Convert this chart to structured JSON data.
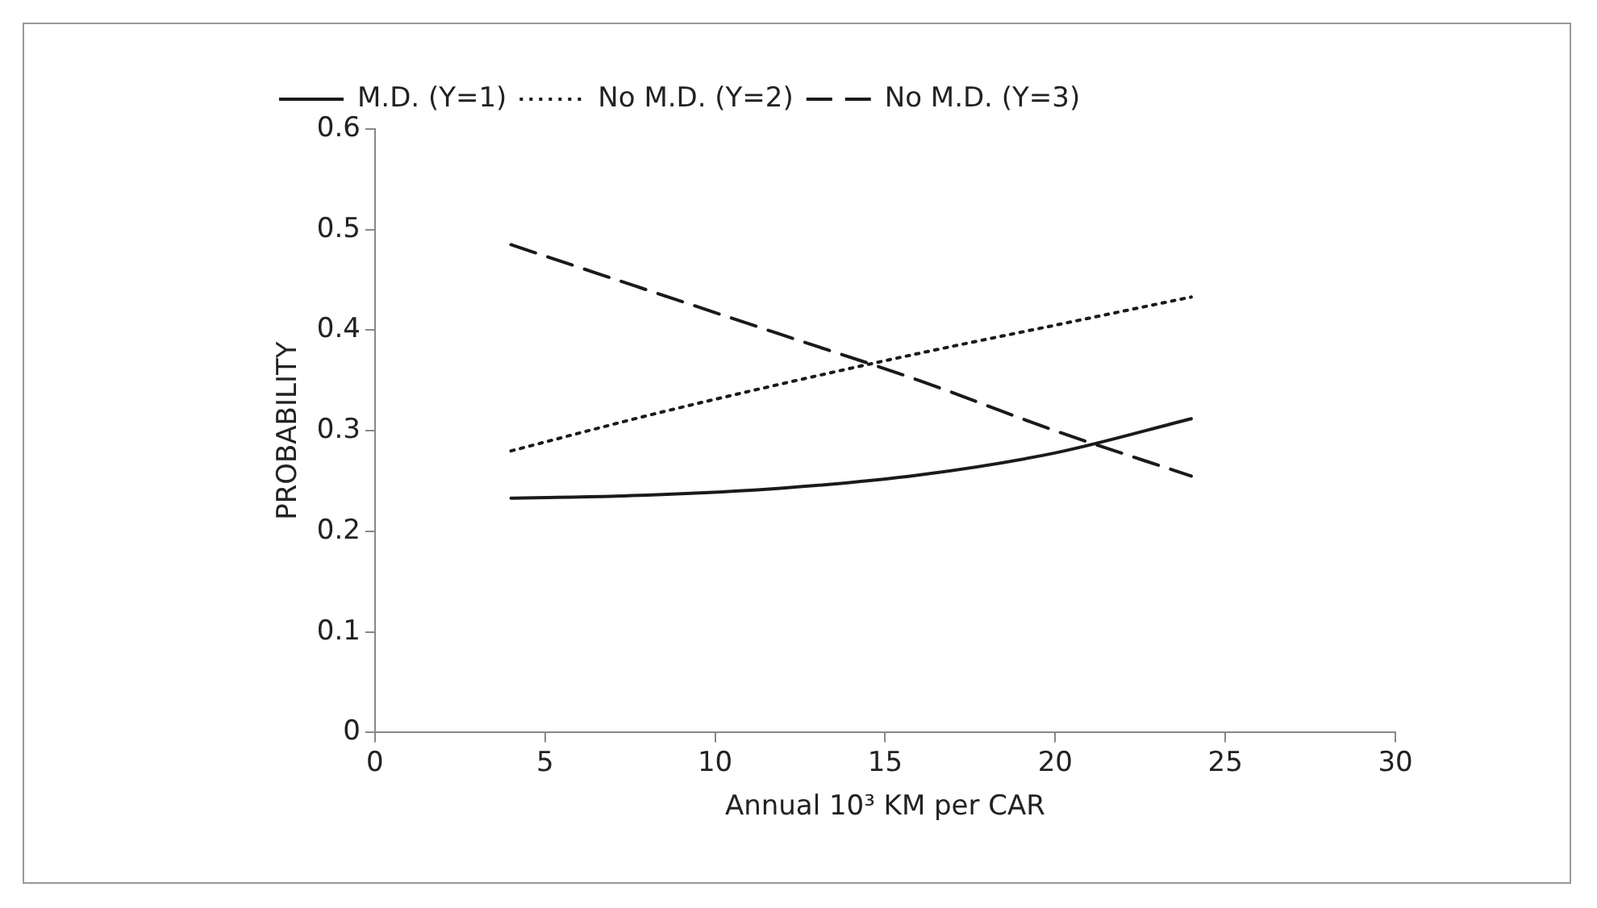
{
  "chart_data": {
    "type": "line",
    "xlabel": "Annual 10³ KM per CAR",
    "ylabel": "PROBABILITY",
    "x": [
      4,
      8,
      12,
      16,
      20,
      24
    ],
    "series": [
      {
        "name": "M.D. (Y=1)",
        "color": "#1a1a1a",
        "line_style": "solid",
        "values": [
          0.233,
          0.236,
          0.243,
          0.256,
          0.278,
          0.312
        ]
      },
      {
        "name": "No M.D. (Y=2)",
        "color": "#1a1a1a",
        "line_style": "dotted",
        "values": [
          0.28,
          0.315,
          0.347,
          0.377,
          0.405,
          0.433
        ]
      },
      {
        "name": "No M.D. (Y=3)",
        "color": "#1a1a1a",
        "line_style": "dashed",
        "values": [
          0.485,
          0.44,
          0.395,
          0.35,
          0.3,
          0.255
        ]
      }
    ],
    "xlim": [
      0,
      30
    ],
    "xticks": [
      0,
      5,
      10,
      15,
      20,
      25,
      30
    ],
    "ylim": [
      0,
      0.6
    ],
    "yticks": [
      0,
      0.1,
      0.2,
      0.3,
      0.4,
      0.5,
      0.6
    ],
    "grid": false,
    "legend": "top",
    "marker": "none"
  }
}
